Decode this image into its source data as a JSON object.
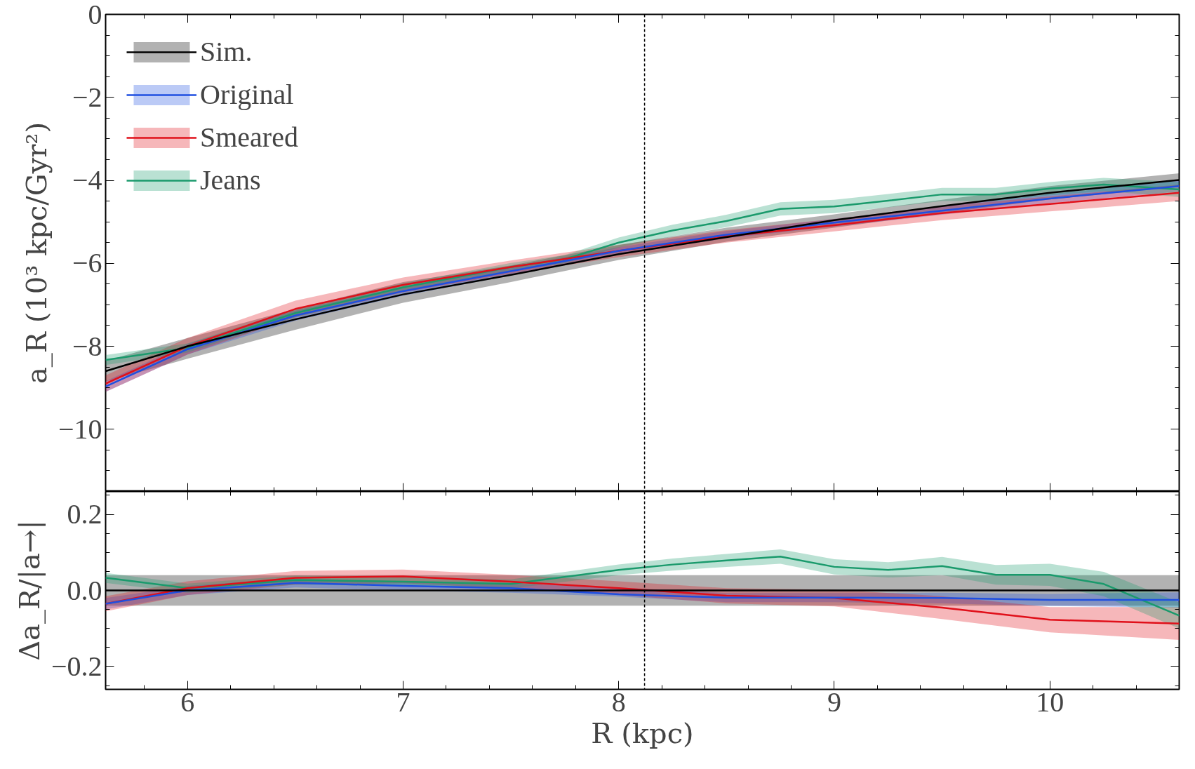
{
  "chart_data": [
    {
      "type": "line",
      "ylabel": "a_R (10³ kpc/Gyr²)",
      "xlim": [
        5.62,
        10.6
      ],
      "xticks": [
        6,
        7,
        8,
        9,
        10
      ],
      "ylim": [
        -11.5,
        0
      ],
      "yticks": [
        -10,
        -8,
        -6,
        -4,
        -2,
        0
      ],
      "tick_labels": "y",
      "legend": "top left",
      "grid": false,
      "marker": "none",
      "line_style": "solid",
      "ref_lines": [
        {
          "axis": "x",
          "value": 8.12,
          "color": "#000000",
          "line_style": "dashed"
        }
      ],
      "series": [
        {
          "name": "Sim.",
          "color": "#000000",
          "x": [
            5.62,
            6,
            6.5,
            7,
            7.5,
            8,
            8.5,
            9,
            9.5,
            10,
            10.6
          ],
          "values": [
            -8.6,
            -8.0,
            -7.35,
            -6.75,
            -6.28,
            -5.78,
            -5.37,
            -4.96,
            -4.62,
            -4.3,
            -3.99
          ],
          "lower": [
            -8.85,
            -8.3,
            -7.6,
            -6.95,
            -6.45,
            -5.92,
            -5.48,
            -5.14,
            -4.79,
            -4.46,
            -4.15
          ],
          "upper": [
            -8.35,
            -7.8,
            -7.1,
            -6.45,
            -6.05,
            -5.56,
            -5.14,
            -4.82,
            -4.47,
            -4.14,
            -3.83
          ]
        },
        {
          "name": "Original",
          "color": "#1f4fe0",
          "x": [
            5.62,
            6,
            6.5,
            7,
            7.5,
            8,
            8.5,
            9,
            9.5,
            10,
            10.6
          ],
          "values": [
            -8.97,
            -8.07,
            -7.26,
            -6.67,
            -6.19,
            -5.7,
            -5.31,
            -5.02,
            -4.73,
            -4.44,
            -4.14
          ],
          "lower": [
            -9.1,
            -8.2,
            -7.38,
            -6.78,
            -6.29,
            -5.79,
            -5.4,
            -5.11,
            -4.83,
            -4.55,
            -4.27
          ],
          "upper": [
            -8.84,
            -7.94,
            -7.14,
            -6.56,
            -6.09,
            -5.61,
            -5.22,
            -4.93,
            -4.63,
            -4.33,
            -4.01
          ]
        },
        {
          "name": "Smeared",
          "color": "#e0101a",
          "x": [
            5.62,
            6,
            6.5,
            7,
            7.5,
            8,
            8.5,
            9,
            9.5,
            10,
            10.6
          ],
          "values": [
            -8.9,
            -8.0,
            -7.1,
            -6.52,
            -6.09,
            -5.7,
            -5.35,
            -5.08,
            -4.79,
            -4.57,
            -4.3
          ],
          "lower": [
            -9.1,
            -8.2,
            -7.3,
            -6.7,
            -6.25,
            -5.85,
            -5.5,
            -5.23,
            -4.96,
            -4.75,
            -4.5
          ],
          "upper": [
            -8.7,
            -7.8,
            -6.9,
            -6.34,
            -5.93,
            -5.55,
            -5.2,
            -4.93,
            -4.62,
            -4.39,
            -4.1
          ]
        },
        {
          "name": "Jeans",
          "color": "#1a9a6c",
          "x": [
            5.62,
            6,
            6.5,
            7,
            7.5,
            7.75,
            8,
            8.25,
            8.5,
            8.75,
            9,
            9.25,
            9.5,
            9.75,
            10,
            10.25,
            10.6
          ],
          "values": [
            -8.33,
            -8.04,
            -7.2,
            -6.58,
            -6.09,
            -5.9,
            -5.5,
            -5.21,
            -4.98,
            -4.69,
            -4.63,
            -4.49,
            -4.34,
            -4.34,
            -4.2,
            -4.1,
            -4.22
          ],
          "lower": [
            -8.45,
            -8.15,
            -7.3,
            -6.68,
            -6.19,
            -6.0,
            -5.62,
            -5.35,
            -5.13,
            -4.85,
            -4.79,
            -4.65,
            -4.5,
            -4.5,
            -4.36,
            -4.26,
            -4.4
          ],
          "upper": [
            -8.21,
            -7.93,
            -7.1,
            -6.48,
            -5.99,
            -5.8,
            -5.38,
            -5.07,
            -4.83,
            -4.53,
            -4.47,
            -4.33,
            -4.18,
            -4.18,
            -4.04,
            -3.94,
            -4.04
          ]
        }
      ]
    },
    {
      "type": "line",
      "xlabel": "R (kpc)",
      "ylabel": "Δa_R/|a→|",
      "xlim": [
        5.62,
        10.6
      ],
      "xticks": [
        6,
        7,
        8,
        9,
        10
      ],
      "ylim": [
        -0.26,
        0.26
      ],
      "yticks": [
        -0.2,
        {
          "value": 0,
          "label": "0.0"
        },
        0.2
      ],
      "grid": false,
      "marker": "none",
      "line_style": "solid",
      "ref_lines": [
        {
          "axis": "x",
          "value": 8.12,
          "color": "#000000",
          "line_style": "dashed"
        }
      ],
      "series": [
        {
          "color": "#000000",
          "x": [
            5.62,
            10.6
          ],
          "values": [
            0,
            0
          ],
          "lower": [
            -0.04,
            -0.04
          ],
          "upper": [
            0.04,
            0.04
          ]
        },
        {
          "color": "#1f4fe0",
          "x": [
            5.62,
            6,
            6.5,
            7,
            7.5,
            8,
            8.5,
            9,
            9.5,
            10,
            10.6
          ],
          "values": [
            -0.035,
            0,
            0.02,
            0.012,
            0.006,
            -0.01,
            -0.019,
            -0.019,
            -0.02,
            -0.025,
            -0.025
          ],
          "lower": [
            -0.05,
            -0.012,
            0.008,
            0.0,
            -0.006,
            -0.016,
            -0.031,
            -0.031,
            -0.034,
            -0.041,
            -0.045
          ],
          "upper": [
            -0.02,
            0.012,
            0.032,
            0.024,
            0.018,
            0.008,
            -0.007,
            -0.007,
            -0.006,
            -0.009,
            -0.005
          ]
        },
        {
          "color": "#e0101a",
          "x": [
            5.62,
            6,
            6.5,
            7,
            7.5,
            8,
            8.5,
            9,
            9.5,
            10,
            10.6
          ],
          "values": [
            -0.035,
            0.006,
            0.033,
            0.037,
            0.023,
            0.006,
            -0.014,
            -0.02,
            -0.045,
            -0.077,
            -0.087
          ],
          "lower": [
            -0.055,
            -0.012,
            0.015,
            0.019,
            0.005,
            -0.012,
            -0.034,
            -0.042,
            -0.075,
            -0.11,
            -0.13
          ],
          "upper": [
            -0.015,
            0.024,
            0.051,
            0.055,
            0.041,
            0.024,
            0.006,
            0.002,
            -0.015,
            -0.044,
            -0.044
          ]
        },
        {
          "color": "#1a9a6c",
          "x": [
            5.62,
            6,
            6.5,
            7,
            7.5,
            8,
            8.25,
            8.5,
            8.75,
            9,
            9.25,
            9.5,
            9.75,
            10,
            10.25,
            10.6
          ],
          "values": [
            0.033,
            0.006,
            0.027,
            0.023,
            0.017,
            0.054,
            0.068,
            0.079,
            0.089,
            0.062,
            0.054,
            0.064,
            0.041,
            0.041,
            0.017,
            -0.066
          ],
          "lower": [
            0.02,
            -0.006,
            0.015,
            0.011,
            0.005,
            0.04,
            0.052,
            0.062,
            0.07,
            0.042,
            0.034,
            0.04,
            0.015,
            0.012,
            -0.015,
            -0.1
          ],
          "upper": [
            0.046,
            0.018,
            0.039,
            0.035,
            0.029,
            0.068,
            0.084,
            0.096,
            0.108,
            0.082,
            0.074,
            0.088,
            0.067,
            0.07,
            0.049,
            -0.032
          ]
        }
      ]
    }
  ]
}
